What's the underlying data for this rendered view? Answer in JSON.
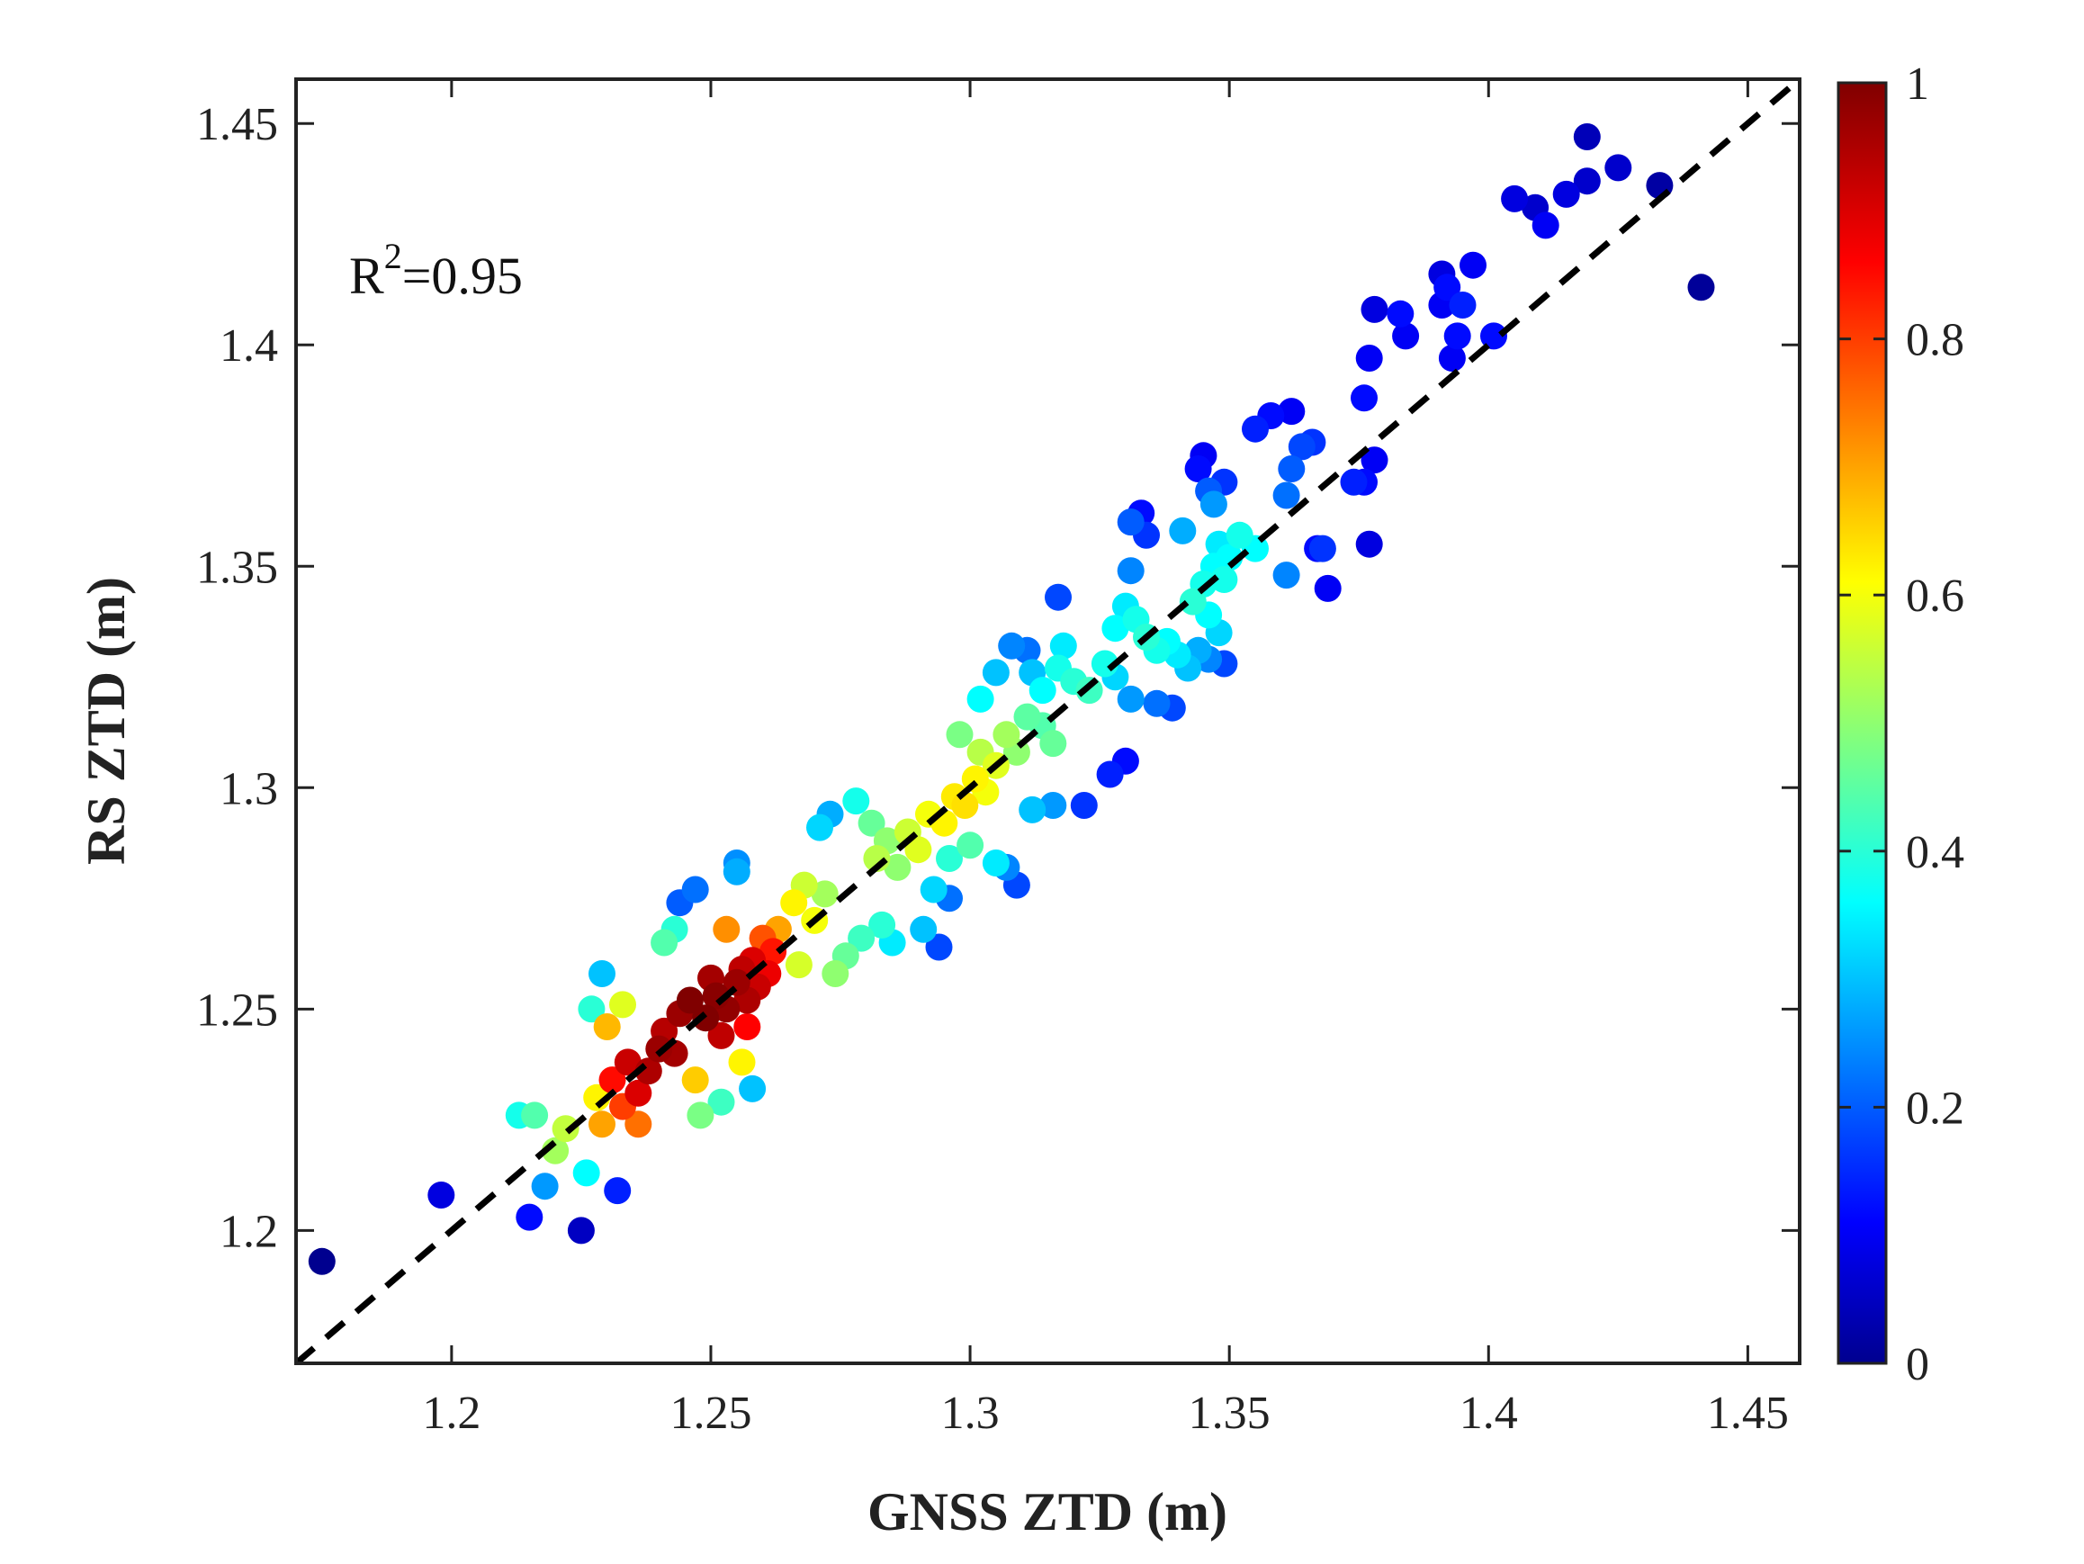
{
  "chart_data": {
    "type": "scatter",
    "xlabel": "GNSS ZTD (m)",
    "ylabel": "RS ZTD (m)",
    "xlim": [
      1.17,
      1.46
    ],
    "ylim": [
      1.17,
      1.46
    ],
    "xticks": [
      1.2,
      1.25,
      1.3,
      1.35,
      1.4,
      1.45
    ],
    "yticks": [
      1.2,
      1.25,
      1.3,
      1.35,
      1.4,
      1.45
    ],
    "xtick_labels": [
      "1.2",
      "1.25",
      "1.3",
      "1.35",
      "1.4",
      "1.45"
    ],
    "ytick_labels": [
      "1.2",
      "1.25",
      "1.3",
      "1.35",
      "1.4",
      "1.45"
    ],
    "reference_line": "y = x (dashed black)",
    "annotation": {
      "prefix": "R",
      "superscript": "2",
      "value": "=0.95"
    },
    "colorbar": {
      "colormap": "jet",
      "min": 0,
      "max": 1,
      "ticks": [
        0,
        0.2,
        0.4,
        0.6,
        0.8,
        1
      ],
      "tick_labels": [
        "0",
        "0.2",
        "0.4",
        "0.6",
        "0.8",
        "1"
      ]
    },
    "color_meaning": "point density (normalized)",
    "points": [
      [
        1.175,
        1.193,
        0.0
      ],
      [
        1.198,
        1.208,
        0.08
      ],
      [
        1.215,
        1.203,
        0.12
      ],
      [
        1.225,
        1.2,
        0.05
      ],
      [
        1.232,
        1.209,
        0.14
      ],
      [
        1.218,
        1.21,
        0.26
      ],
      [
        1.226,
        1.213,
        0.36
      ],
      [
        1.213,
        1.226,
        0.38
      ],
      [
        1.216,
        1.226,
        0.44
      ],
      [
        1.22,
        1.218,
        0.52
      ],
      [
        1.222,
        1.223,
        0.55
      ],
      [
        1.228,
        1.23,
        0.62
      ],
      [
        1.229,
        1.224,
        0.7
      ],
      [
        1.233,
        1.228,
        0.8
      ],
      [
        1.231,
        1.234,
        0.85
      ],
      [
        1.236,
        1.231,
        0.9
      ],
      [
        1.234,
        1.238,
        0.92
      ],
      [
        1.238,
        1.236,
        0.95
      ],
      [
        1.24,
        1.241,
        0.97
      ],
      [
        1.241,
        1.245,
        0.94
      ],
      [
        1.243,
        1.24,
        0.96
      ],
      [
        1.236,
        1.224,
        0.75
      ],
      [
        1.23,
        1.246,
        0.68
      ],
      [
        1.233,
        1.251,
        0.58
      ],
      [
        1.227,
        1.25,
        0.4
      ],
      [
        1.229,
        1.258,
        0.3
      ],
      [
        1.247,
        1.234,
        0.66
      ],
      [
        1.248,
        1.226,
        0.48
      ],
      [
        1.252,
        1.229,
        0.42
      ],
      [
        1.244,
        1.249,
        0.97
      ],
      [
        1.246,
        1.252,
        1.0
      ],
      [
        1.249,
        1.248,
        1.0
      ],
      [
        1.251,
        1.253,
        0.99
      ],
      [
        1.253,
        1.25,
        0.98
      ],
      [
        1.255,
        1.256,
        0.97
      ],
      [
        1.25,
        1.257,
        0.96
      ],
      [
        1.257,
        1.252,
        0.95
      ],
      [
        1.256,
        1.259,
        0.93
      ],
      [
        1.259,
        1.255,
        0.92
      ],
      [
        1.258,
        1.261,
        0.9
      ],
      [
        1.261,
        1.258,
        0.88
      ],
      [
        1.262,
        1.263,
        0.84
      ],
      [
        1.252,
        1.244,
        0.93
      ],
      [
        1.257,
        1.246,
        0.86
      ],
      [
        1.26,
        1.266,
        0.78
      ],
      [
        1.263,
        1.268,
        0.7
      ],
      [
        1.256,
        1.238,
        0.62
      ],
      [
        1.253,
        1.268,
        0.72
      ],
      [
        1.258,
        1.232,
        0.3
      ],
      [
        1.247,
        1.277,
        0.22
      ],
      [
        1.244,
        1.274,
        0.2
      ],
      [
        1.255,
        1.283,
        0.25
      ],
      [
        1.255,
        1.281,
        0.28
      ],
      [
        1.243,
        1.268,
        0.4
      ],
      [
        1.241,
        1.265,
        0.44
      ],
      [
        1.266,
        1.274,
        0.62
      ],
      [
        1.268,
        1.278,
        0.56
      ],
      [
        1.272,
        1.276,
        0.52
      ],
      [
        1.27,
        1.27,
        0.6
      ],
      [
        1.267,
        1.26,
        0.57
      ],
      [
        1.274,
        1.258,
        0.5
      ],
      [
        1.276,
        1.262,
        0.46
      ],
      [
        1.279,
        1.266,
        0.42
      ],
      [
        1.283,
        1.269,
        0.4
      ],
      [
        1.285,
        1.265,
        0.34
      ],
      [
        1.291,
        1.268,
        0.3
      ],
      [
        1.294,
        1.264,
        0.18
      ],
      [
        1.296,
        1.275,
        0.22
      ],
      [
        1.293,
        1.277,
        0.32
      ],
      [
        1.271,
        1.291,
        0.32
      ],
      [
        1.273,
        1.294,
        0.28
      ],
      [
        1.278,
        1.297,
        0.38
      ],
      [
        1.281,
        1.292,
        0.46
      ],
      [
        1.284,
        1.288,
        0.5
      ],
      [
        1.282,
        1.284,
        0.54
      ],
      [
        1.286,
        1.282,
        0.5
      ],
      [
        1.288,
        1.29,
        0.56
      ],
      [
        1.29,
        1.286,
        0.58
      ],
      [
        1.292,
        1.294,
        0.6
      ],
      [
        1.295,
        1.292,
        0.62
      ],
      [
        1.297,
        1.298,
        0.63
      ],
      [
        1.299,
        1.296,
        0.64
      ],
      [
        1.301,
        1.302,
        0.62
      ],
      [
        1.303,
        1.299,
        0.6
      ],
      [
        1.305,
        1.305,
        0.58
      ],
      [
        1.302,
        1.308,
        0.54
      ],
      [
        1.298,
        1.312,
        0.48
      ],
      [
        1.307,
        1.312,
        0.52
      ],
      [
        1.309,
        1.308,
        0.5
      ],
      [
        1.311,
        1.316,
        0.45
      ],
      [
        1.314,
        1.314,
        0.44
      ],
      [
        1.316,
        1.31,
        0.46
      ],
      [
        1.3,
        1.287,
        0.44
      ],
      [
        1.305,
        1.283,
        0.34
      ],
      [
        1.307,
        1.282,
        0.24
      ],
      [
        1.309,
        1.278,
        0.18
      ],
      [
        1.312,
        1.295,
        0.3
      ],
      [
        1.316,
        1.296,
        0.26
      ],
      [
        1.322,
        1.296,
        0.16
      ],
      [
        1.296,
        1.284,
        0.4
      ],
      [
        1.302,
        1.32,
        0.36
      ],
      [
        1.305,
        1.326,
        0.3
      ],
      [
        1.308,
        1.332,
        0.24
      ],
      [
        1.311,
        1.331,
        0.22
      ],
      [
        1.312,
        1.326,
        0.3
      ],
      [
        1.314,
        1.322,
        0.36
      ],
      [
        1.317,
        1.327,
        0.38
      ],
      [
        1.318,
        1.332,
        0.34
      ],
      [
        1.32,
        1.324,
        0.4
      ],
      [
        1.323,
        1.322,
        0.42
      ],
      [
        1.326,
        1.328,
        0.38
      ],
      [
        1.328,
        1.336,
        0.36
      ],
      [
        1.33,
        1.341,
        0.34
      ],
      [
        1.332,
        1.338,
        0.38
      ],
      [
        1.334,
        1.334,
        0.4
      ],
      [
        1.336,
        1.331,
        0.38
      ],
      [
        1.338,
        1.333,
        0.36
      ],
      [
        1.34,
        1.33,
        0.34
      ],
      [
        1.342,
        1.327,
        0.3
      ],
      [
        1.339,
        1.318,
        0.18
      ],
      [
        1.336,
        1.319,
        0.22
      ],
      [
        1.331,
        1.32,
        0.26
      ],
      [
        1.328,
        1.325,
        0.32
      ],
      [
        1.327,
        1.303,
        0.14
      ],
      [
        1.33,
        1.306,
        0.12
      ],
      [
        1.317,
        1.343,
        0.18
      ],
      [
        1.331,
        1.349,
        0.24
      ],
      [
        1.331,
        1.36,
        0.2
      ],
      [
        1.334,
        1.357,
        0.16
      ],
      [
        1.333,
        1.362,
        0.12
      ],
      [
        1.343,
        1.342,
        0.4
      ],
      [
        1.345,
        1.346,
        0.38
      ],
      [
        1.347,
        1.35,
        0.36
      ],
      [
        1.349,
        1.347,
        0.38
      ],
      [
        1.348,
        1.355,
        0.34
      ],
      [
        1.35,
        1.352,
        0.36
      ],
      [
        1.352,
        1.357,
        0.38
      ],
      [
        1.355,
        1.354,
        0.36
      ],
      [
        1.346,
        1.339,
        0.36
      ],
      [
        1.348,
        1.335,
        0.32
      ],
      [
        1.344,
        1.331,
        0.28
      ],
      [
        1.346,
        1.329,
        0.24
      ],
      [
        1.349,
        1.328,
        0.18
      ],
      [
        1.346,
        1.367,
        0.2
      ],
      [
        1.349,
        1.369,
        0.16
      ],
      [
        1.344,
        1.372,
        0.12
      ],
      [
        1.345,
        1.375,
        0.1
      ],
      [
        1.347,
        1.364,
        0.26
      ],
      [
        1.341,
        1.358,
        0.28
      ],
      [
        1.361,
        1.366,
        0.22
      ],
      [
        1.362,
        1.372,
        0.2
      ],
      [
        1.364,
        1.377,
        0.18
      ],
      [
        1.366,
        1.378,
        0.16
      ],
      [
        1.355,
        1.381,
        0.14
      ],
      [
        1.358,
        1.384,
        0.12
      ],
      [
        1.362,
        1.385,
        0.1
      ],
      [
        1.361,
        1.348,
        0.24
      ],
      [
        1.367,
        1.354,
        0.12
      ],
      [
        1.369,
        1.345,
        0.1
      ],
      [
        1.368,
        1.354,
        0.16
      ],
      [
        1.374,
        1.369,
        0.14
      ],
      [
        1.376,
        1.369,
        0.12
      ],
      [
        1.378,
        1.374,
        0.1
      ],
      [
        1.377,
        1.355,
        0.08
      ],
      [
        1.376,
        1.388,
        0.12
      ],
      [
        1.377,
        1.397,
        0.1
      ],
      [
        1.378,
        1.408,
        0.08
      ],
      [
        1.383,
        1.407,
        0.12
      ],
      [
        1.384,
        1.402,
        0.1
      ],
      [
        1.391,
        1.409,
        0.1
      ],
      [
        1.391,
        1.416,
        0.08
      ],
      [
        1.392,
        1.413,
        0.12
      ],
      [
        1.393,
        1.397,
        0.1
      ],
      [
        1.394,
        1.402,
        0.12
      ],
      [
        1.395,
        1.409,
        0.14
      ],
      [
        1.397,
        1.418,
        0.1
      ],
      [
        1.401,
        1.402,
        0.12
      ],
      [
        1.405,
        1.433,
        0.08
      ],
      [
        1.409,
        1.431,
        0.06
      ],
      [
        1.411,
        1.427,
        0.1
      ],
      [
        1.415,
        1.434,
        0.08
      ],
      [
        1.419,
        1.437,
        0.06
      ],
      [
        1.419,
        1.447,
        0.04
      ],
      [
        1.425,
        1.44,
        0.06
      ],
      [
        1.433,
        1.436,
        0.02
      ],
      [
        1.441,
        1.413,
        0.01
      ]
    ]
  }
}
